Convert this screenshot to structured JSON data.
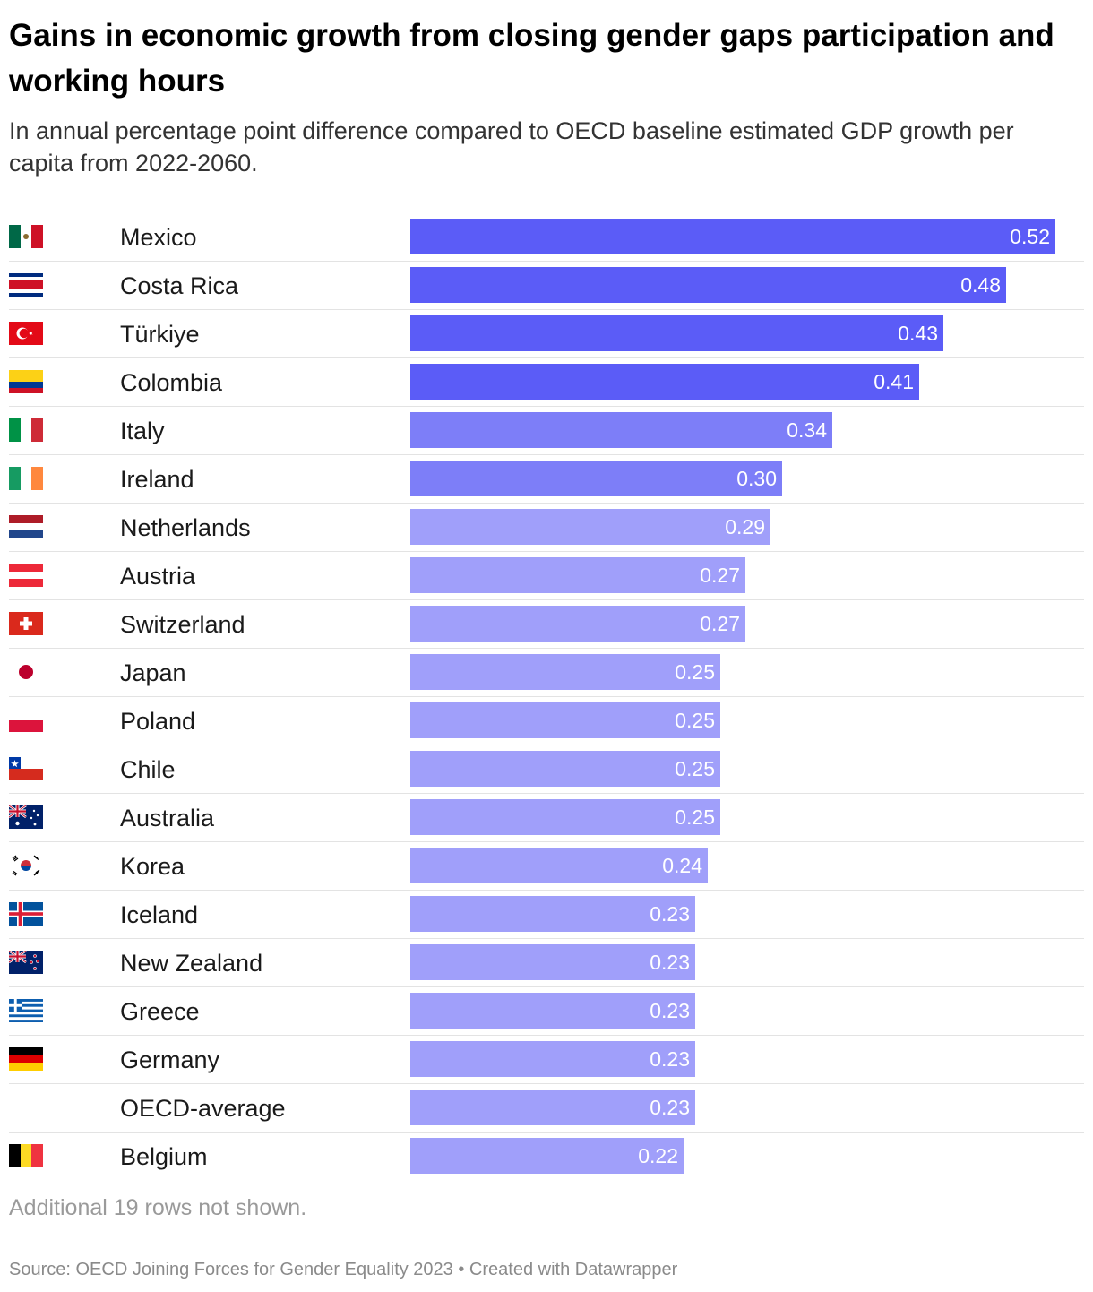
{
  "title": "Gains in economic growth from closing gender gaps participation and working hours",
  "subtitle": "In annual percentage point difference compared to OECD baseline estimated GDP growth per capita from 2022-2060.",
  "note": "Additional 19 rows not shown.",
  "source": "Source: OECD Joining Forces for Gender Equality 2023 • Created with Datawrapper",
  "colors": {
    "high": "#5b5cf7",
    "mid": "#7d7ef8",
    "low": "#a09ffa"
  },
  "chart_data": {
    "type": "bar",
    "orientation": "horizontal",
    "title": "Gains in economic growth from closing gender gaps participation and working hours",
    "subtitle": "In annual percentage point difference compared to OECD baseline estimated GDP growth per capita from 2022-2060.",
    "xlim": [
      0,
      0.52
    ],
    "rows": [
      {
        "label": "Mexico",
        "value": 0.52,
        "display": "0.52",
        "flag": "mexico-flag",
        "shade": "high"
      },
      {
        "label": "Costa Rica",
        "value": 0.48,
        "display": "0.48",
        "flag": "costa-rica-flag",
        "shade": "high"
      },
      {
        "label": "Türkiye",
        "value": 0.43,
        "display": "0.43",
        "flag": "turkiye-flag",
        "shade": "high"
      },
      {
        "label": "Colombia",
        "value": 0.41,
        "display": "0.41",
        "flag": "colombia-flag",
        "shade": "high"
      },
      {
        "label": "Italy",
        "value": 0.34,
        "display": "0.34",
        "flag": "italy-flag",
        "shade": "mid"
      },
      {
        "label": "Ireland",
        "value": 0.3,
        "display": "0.30",
        "flag": "ireland-flag",
        "shade": "mid"
      },
      {
        "label": "Netherlands",
        "value": 0.29,
        "display": "0.29",
        "flag": "netherlands-flag",
        "shade": "low"
      },
      {
        "label": "Austria",
        "value": 0.27,
        "display": "0.27",
        "flag": "austria-flag",
        "shade": "low"
      },
      {
        "label": "Switzerland",
        "value": 0.27,
        "display": "0.27",
        "flag": "switzerland-flag",
        "shade": "low"
      },
      {
        "label": "Japan",
        "value": 0.25,
        "display": "0.25",
        "flag": "japan-flag",
        "shade": "low"
      },
      {
        "label": "Poland",
        "value": 0.25,
        "display": "0.25",
        "flag": "poland-flag",
        "shade": "low"
      },
      {
        "label": "Chile",
        "value": 0.25,
        "display": "0.25",
        "flag": "chile-flag",
        "shade": "low"
      },
      {
        "label": "Australia",
        "value": 0.25,
        "display": "0.25",
        "flag": "australia-flag",
        "shade": "low"
      },
      {
        "label": "Korea",
        "value": 0.24,
        "display": "0.24",
        "flag": "korea-flag",
        "shade": "low"
      },
      {
        "label": "Iceland",
        "value": 0.23,
        "display": "0.23",
        "flag": "iceland-flag",
        "shade": "low"
      },
      {
        "label": "New Zealand",
        "value": 0.23,
        "display": "0.23",
        "flag": "new-zealand-flag",
        "shade": "low"
      },
      {
        "label": "Greece",
        "value": 0.23,
        "display": "0.23",
        "flag": "greece-flag",
        "shade": "low"
      },
      {
        "label": "Germany",
        "value": 0.23,
        "display": "0.23",
        "flag": "germany-flag",
        "shade": "low"
      },
      {
        "label": "OECD-average",
        "value": 0.23,
        "display": "0.23",
        "flag": "",
        "shade": "low"
      },
      {
        "label": "Belgium",
        "value": 0.22,
        "display": "0.22",
        "flag": "belgium-flag",
        "shade": "low"
      }
    ]
  }
}
